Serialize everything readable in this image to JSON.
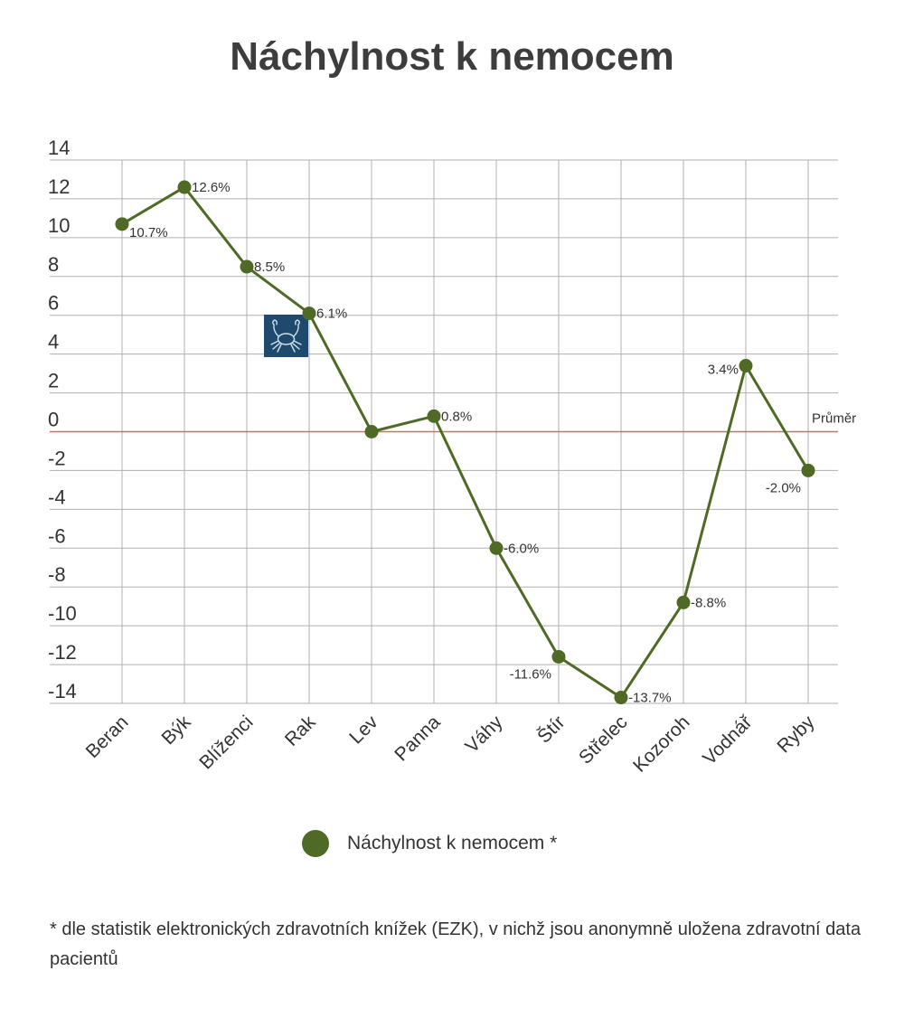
{
  "chart_data": {
    "type": "line",
    "title": "Náchylnost k nemocem",
    "categories": [
      "Beran",
      "Býk",
      "Blíženci",
      "Rak",
      "Lev",
      "Panna",
      "Váhy",
      "Štír",
      "Střelec",
      "Kozoroh",
      "Vodnář",
      "Ryby"
    ],
    "series": [
      {
        "name": "Náchylnost k nemocem *",
        "values": [
          10.7,
          12.6,
          8.5,
          6.1,
          0.0,
          0.8,
          -6.0,
          -11.6,
          -13.7,
          -8.8,
          3.4,
          -2.0
        ],
        "labels": [
          "10.7%",
          "12.6%",
          "8.5%",
          "6.1%",
          "",
          "0.8%",
          "-6.0%",
          "-11.6%",
          "-13.7%",
          "-8.8%",
          "3.4%",
          "-2.0%"
        ]
      }
    ],
    "ylim": [
      -14,
      14
    ],
    "y_ticks": [
      14,
      12,
      10,
      8,
      6,
      4,
      2,
      0,
      -2,
      -4,
      -6,
      -8,
      -10,
      -12,
      -14
    ],
    "grid": true,
    "reference_line": {
      "value": 0,
      "label": "Průměr"
    },
    "legend_position": "bottom",
    "xlabel": "",
    "ylabel": ""
  },
  "footnote": "* dle statistik elektronických zdravotních knížek (EZK), v nichž jsou anonymně uložena zdravotní data pacientů",
  "colors": {
    "series": "#4e6a24",
    "reference": "#d46a6a",
    "grid": "#b0b0b0",
    "icon_bg": "#1f4a6e"
  },
  "icon": "crab-icon"
}
